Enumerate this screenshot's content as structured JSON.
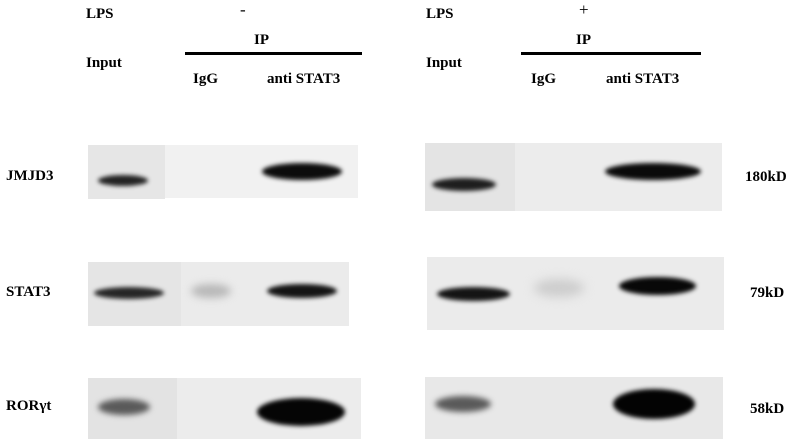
{
  "lps_label": "LPS",
  "left": {
    "lps_sign": "-",
    "input_label": "Input",
    "ip_label": "IP",
    "igg_label": "IgG",
    "anti_label": "anti STAT3"
  },
  "right": {
    "lps_sign": "+",
    "input_label": "Input",
    "ip_label": "IP",
    "igg_label": "IgG",
    "anti_label": "anti STAT3"
  },
  "rows": [
    {
      "name": "JMJD3",
      "size": "180kD"
    },
    {
      "name": "STAT3",
      "size": "79kD"
    },
    {
      "name": "RORγt",
      "size": "58kD"
    }
  ]
}
